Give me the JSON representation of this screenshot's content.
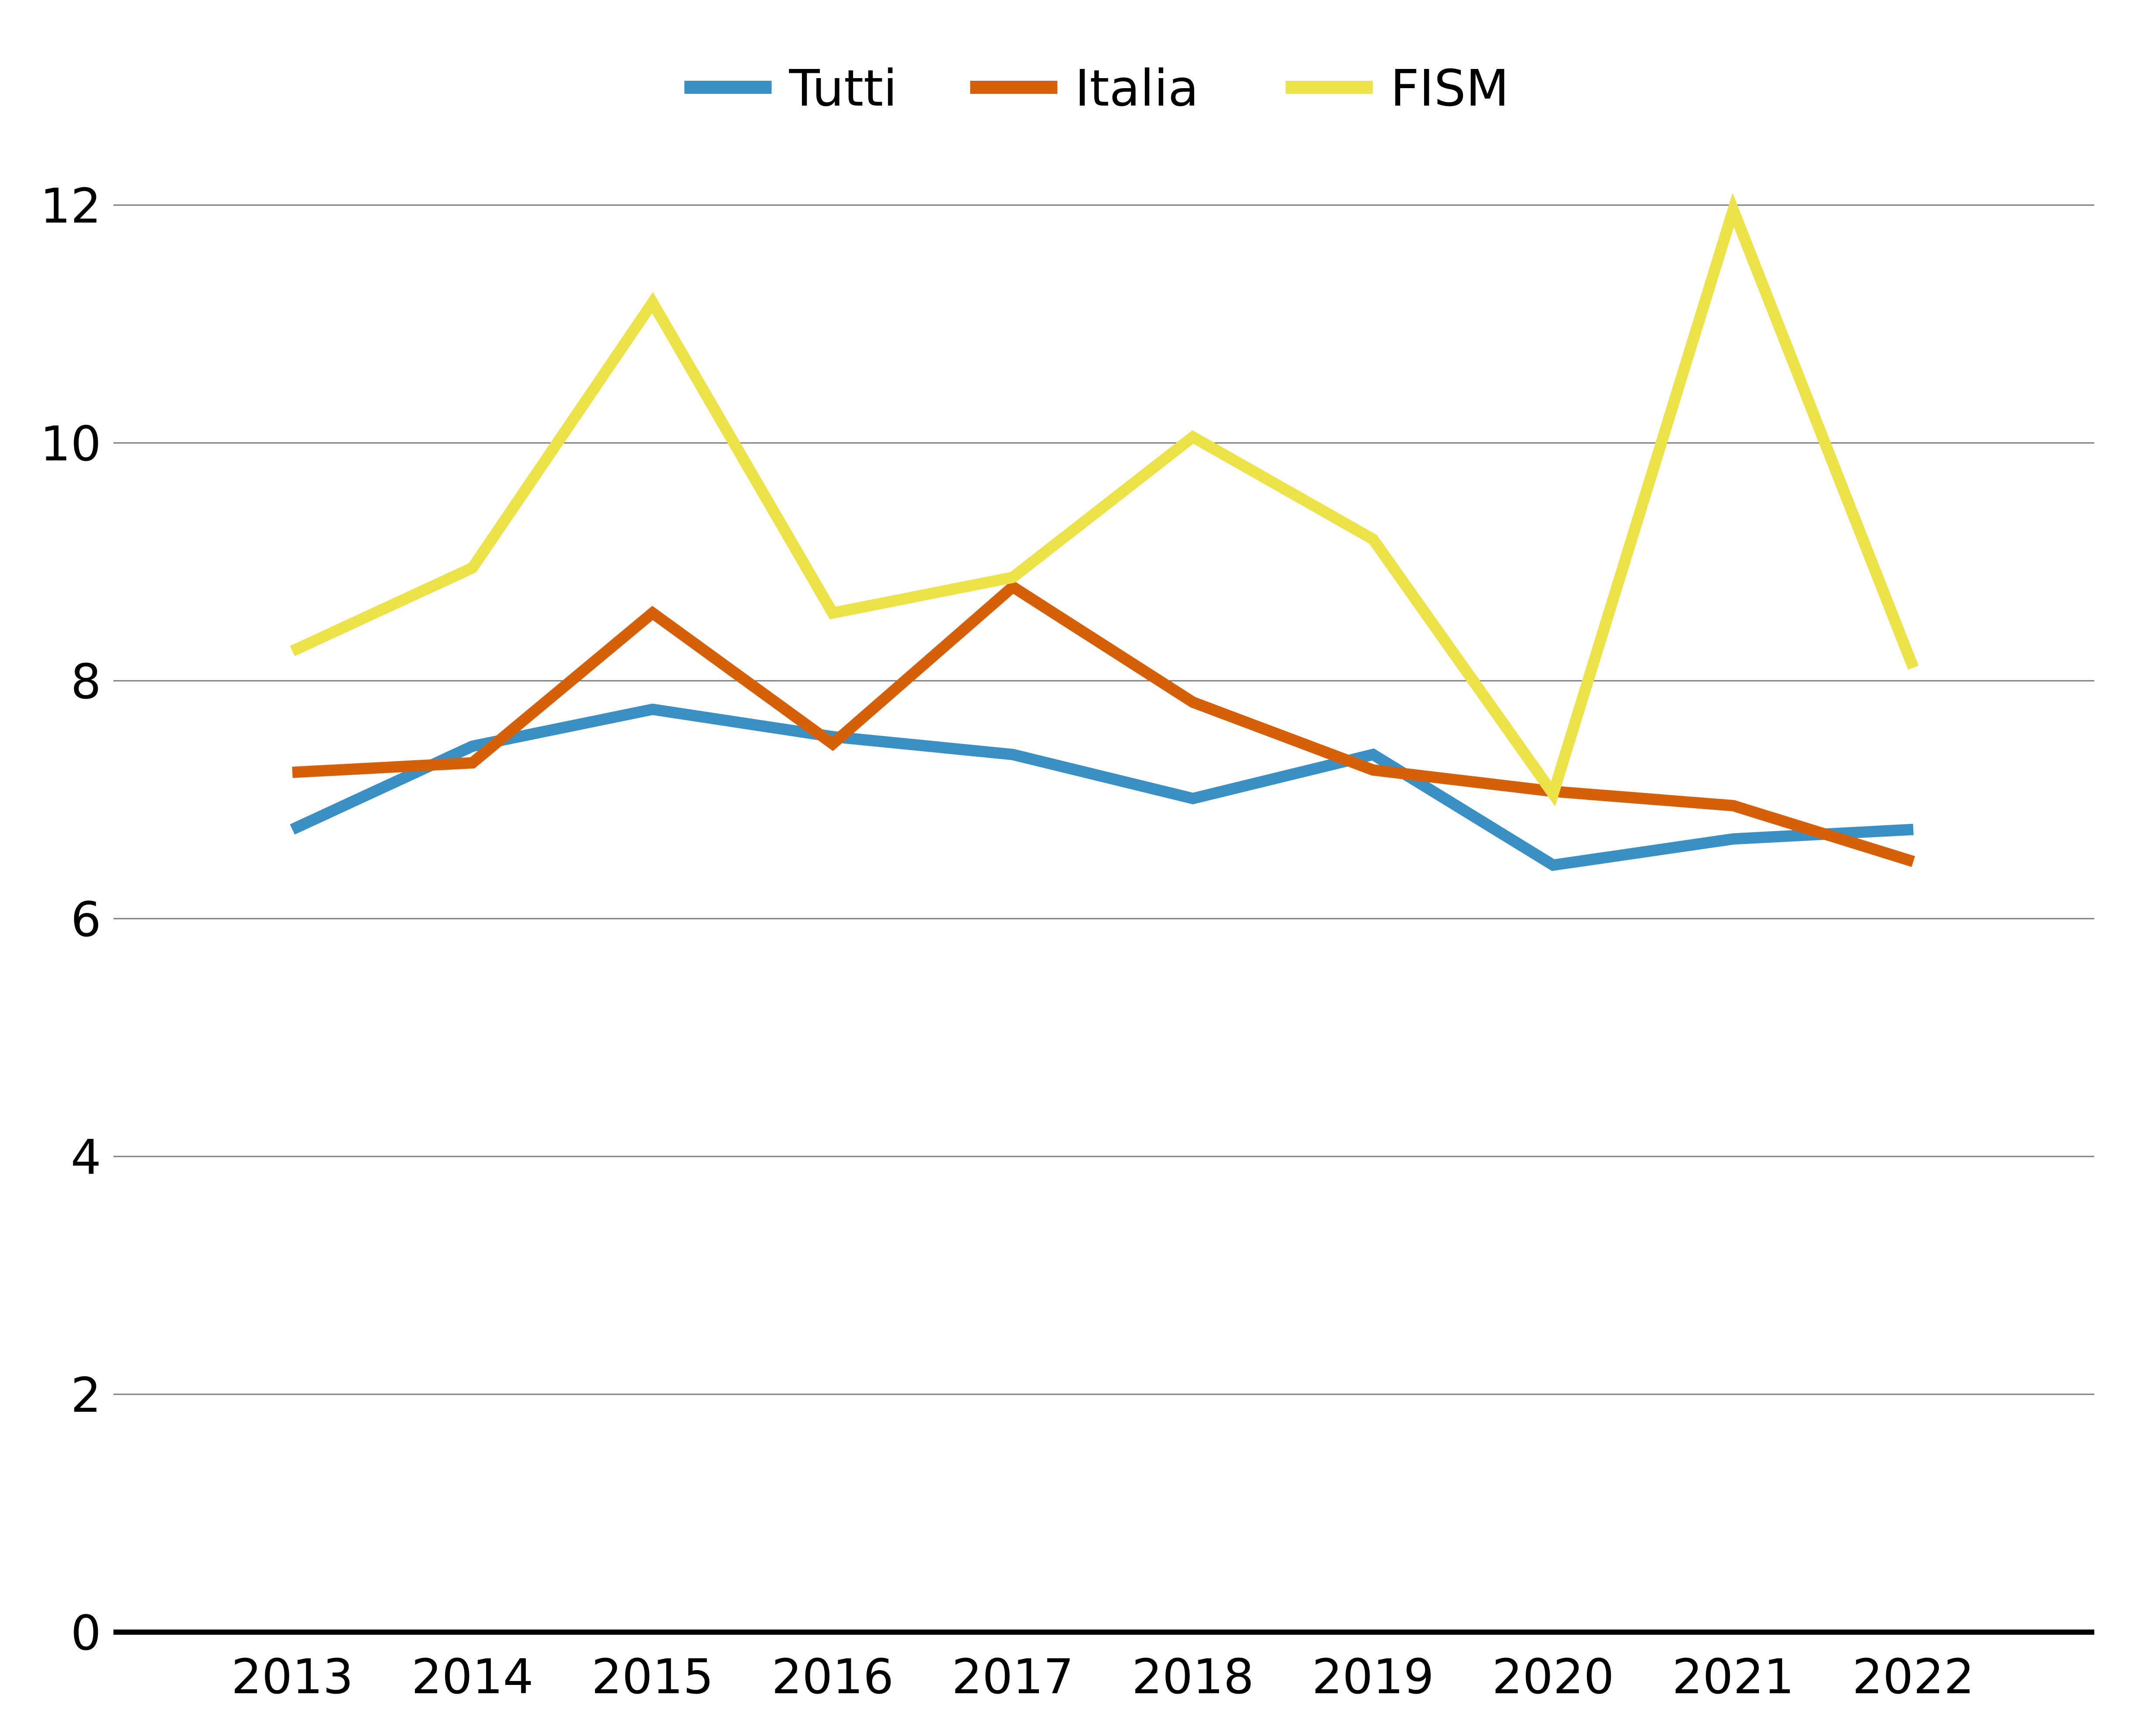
{
  "chart_data": {
    "type": "line",
    "title": "",
    "xlabel": "",
    "ylabel": "",
    "categories": [
      "2013",
      "2014",
      "2015",
      "2016",
      "2017",
      "2018",
      "2019",
      "2020",
      "2021",
      "2022"
    ],
    "ylim": [
      0,
      12
    ],
    "yticks": [
      0,
      2,
      4,
      6,
      8,
      10,
      12
    ],
    "grid": true,
    "legend_position": "top-center",
    "series": [
      {
        "name": "Tutti",
        "color": "#3A8FC4",
        "values": [
          6.75,
          7.45,
          7.76,
          7.53,
          7.38,
          7.01,
          7.38,
          6.45,
          6.67,
          6.75
        ]
      },
      {
        "name": "Italia",
        "color": "#D4600A",
        "values": [
          7.23,
          7.31,
          8.57,
          7.47,
          8.79,
          7.82,
          7.25,
          7.07,
          6.95,
          6.48
        ]
      },
      {
        "name": "FISM",
        "color": "#EDE24A",
        "values": [
          8.25,
          8.95,
          11.18,
          8.57,
          8.87,
          10.05,
          9.19,
          7.05,
          11.96,
          8.11
        ]
      }
    ]
  }
}
